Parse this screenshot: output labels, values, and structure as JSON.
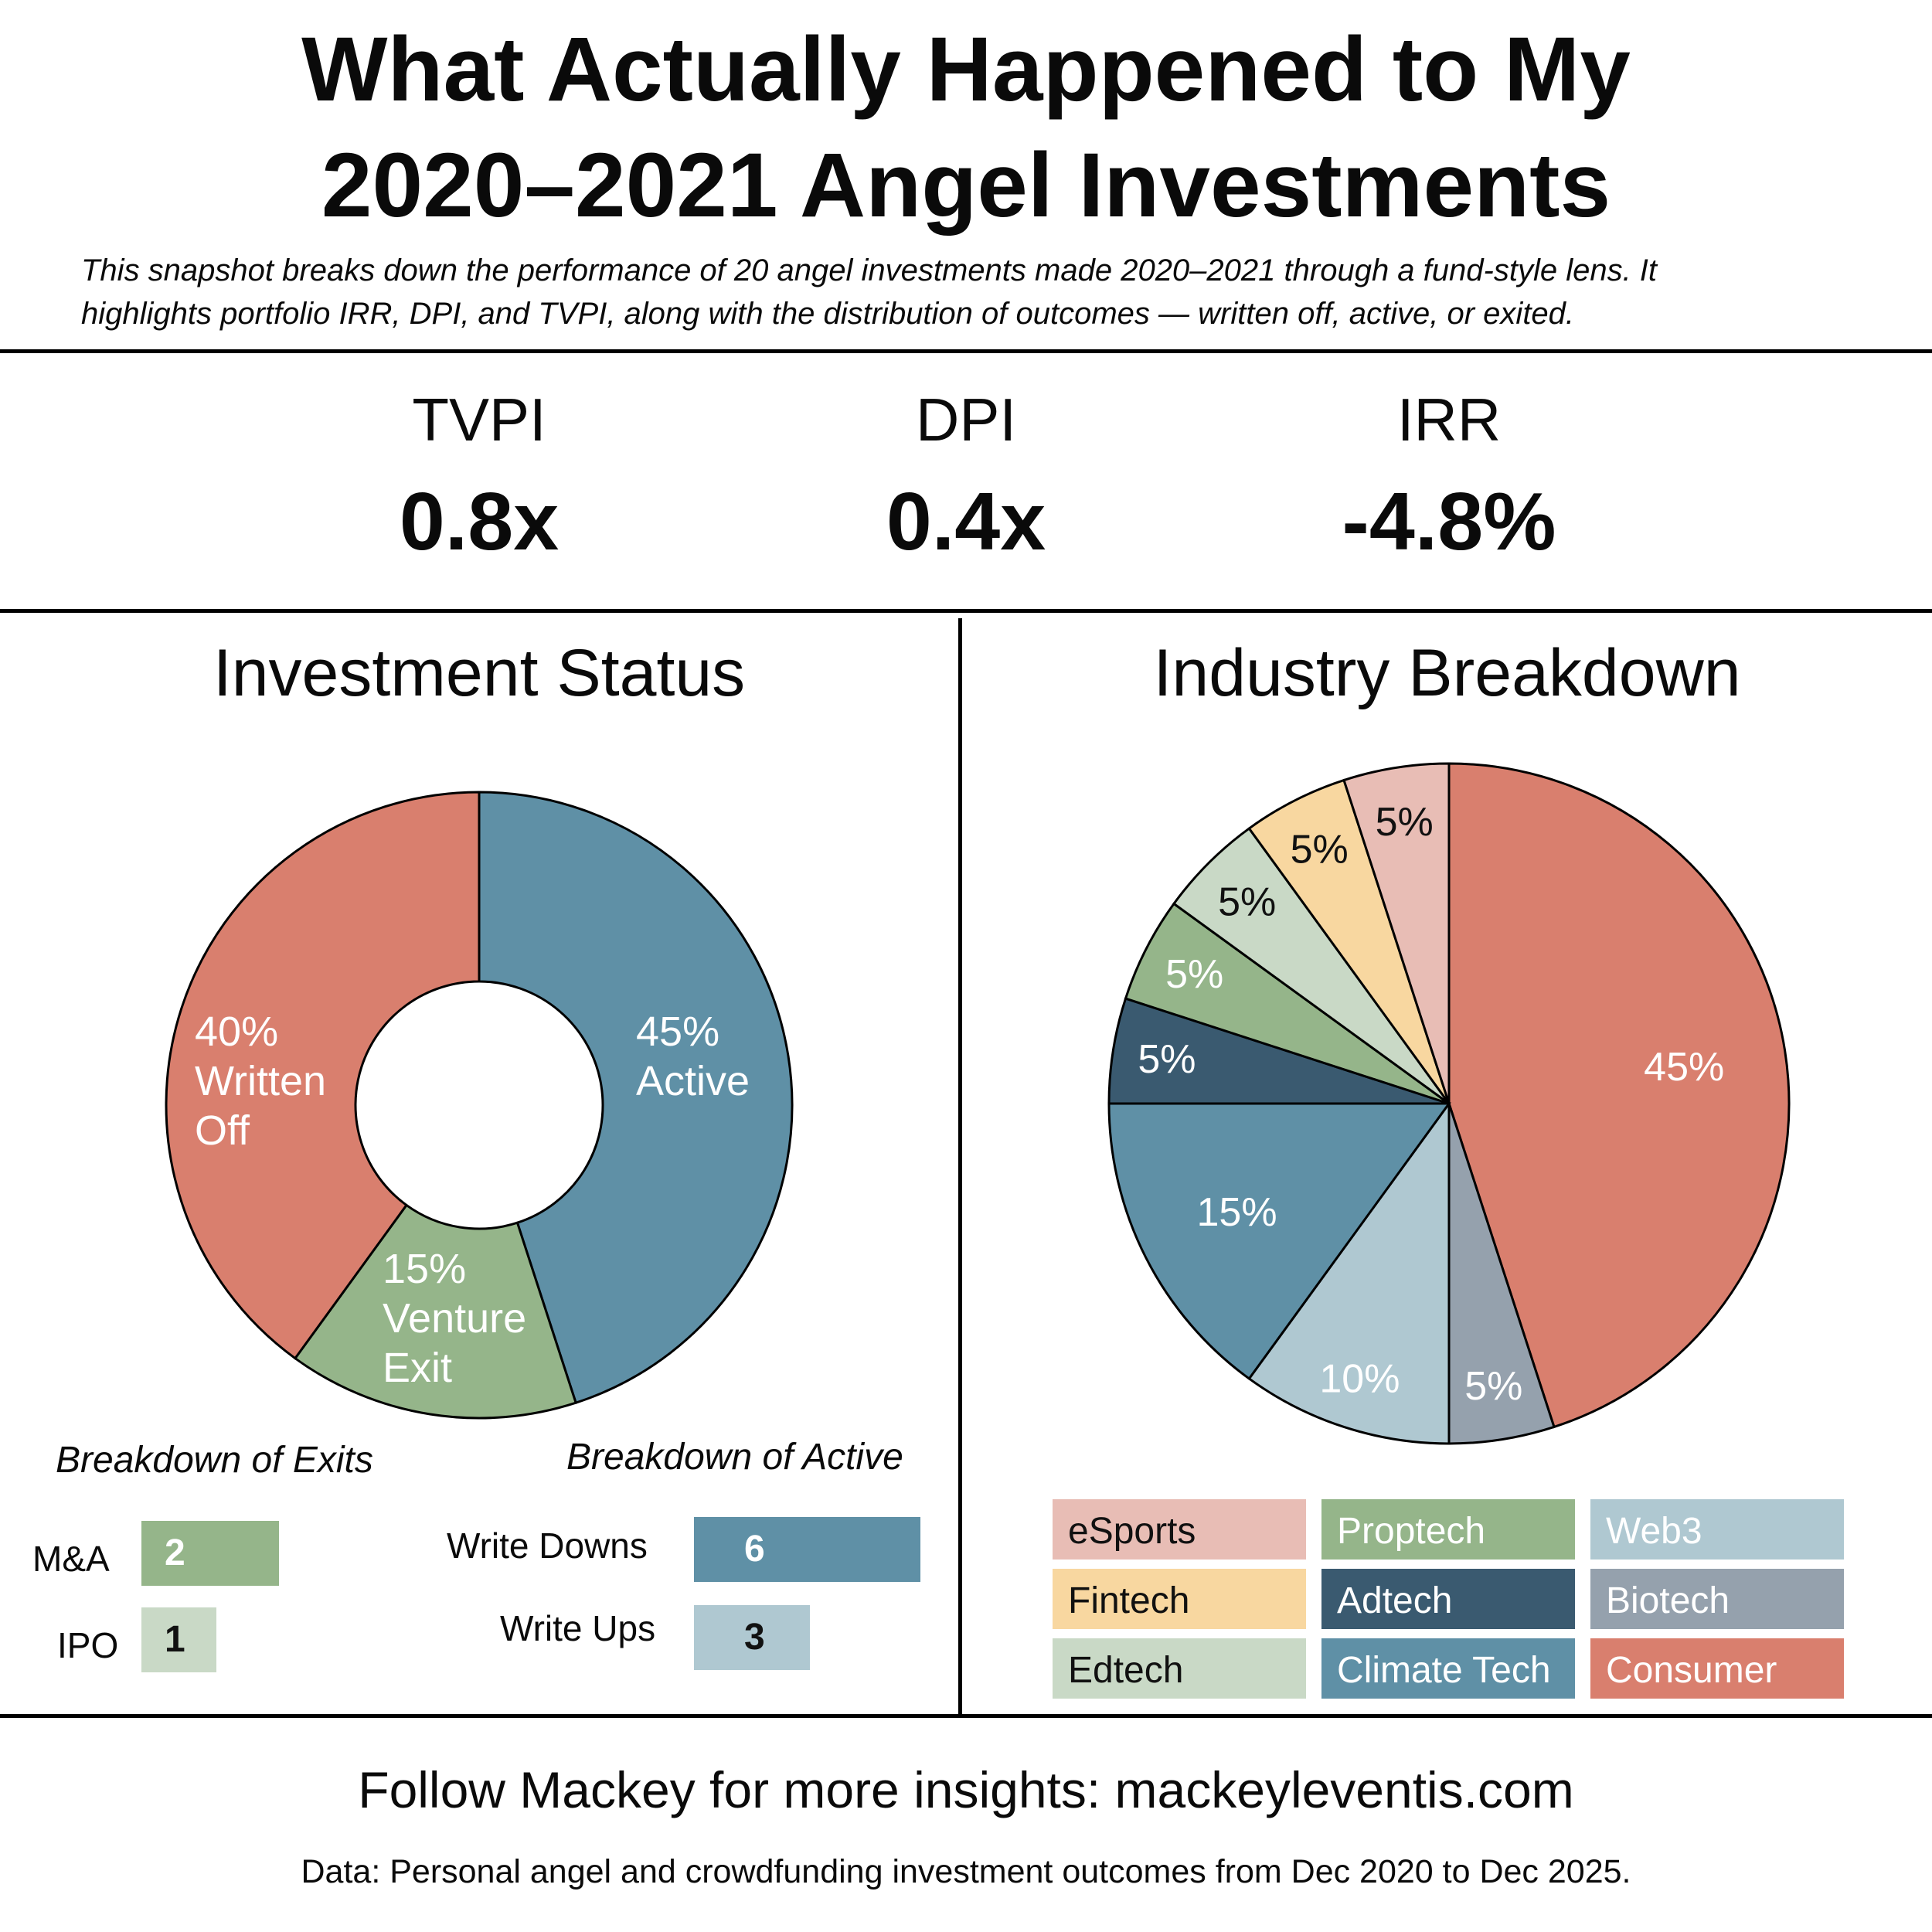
{
  "header": {
    "title_line1": "What Actually Happened to My",
    "title_line2": "2020–2021 Angel Investments",
    "subtitle_line1": "This snapshot breaks down the performance of 20 angel investments made 2020–2021 through a fund-style lens. It",
    "subtitle_line2": "highlights portfolio IRR, DPI, and TVPI, along with the distribution of outcomes — written off, active, or exited."
  },
  "metrics": [
    {
      "label": "TVPI",
      "value": "0.8x"
    },
    {
      "label": "DPI",
      "value": "0.4x"
    },
    {
      "label": "IRR",
      "value": "-4.8%"
    }
  ],
  "status_section": {
    "title": "Investment Status",
    "exits_heading": "Breakdown of Exits",
    "active_heading": "Breakdown of Active",
    "exits": [
      {
        "label": "M&A",
        "value": 2,
        "color": "#95b58a"
      },
      {
        "label": "IPO",
        "value": 1,
        "color": "#c9d9c6"
      }
    ],
    "active": [
      {
        "label": "Write Downs",
        "value": 6,
        "color": "#5f90a6"
      },
      {
        "label": "Write Ups",
        "value": 3,
        "color": "#afc8d1"
      }
    ]
  },
  "industry_section": {
    "title": "Industry Breakdown",
    "legend": [
      {
        "label": "eSports",
        "color": "#e8bdb5",
        "text_color": "#111111"
      },
      {
        "label": "Proptech",
        "color": "#95b58a",
        "text_color": "#ffffff"
      },
      {
        "label": "Web3",
        "color": "#afc8d1",
        "text_color": "#ffffff"
      },
      {
        "label": "Fintech",
        "color": "#f8d7a0",
        "text_color": "#111111"
      },
      {
        "label": "Adtech",
        "color": "#3a5a70",
        "text_color": "#ffffff"
      },
      {
        "label": "Biotech",
        "color": "#95a1ad",
        "text_color": "#ffffff"
      },
      {
        "label": "Edtech",
        "color": "#c9d9c6",
        "text_color": "#111111"
      },
      {
        "label": "Climate Tech",
        "color": "#5f90a6",
        "text_color": "#ffffff"
      },
      {
        "label": "Consumer",
        "color": "#d97f6e",
        "text_color": "#ffffff"
      }
    ]
  },
  "chart_data": [
    {
      "type": "pie",
      "subtype": "donut",
      "title": "Investment Status",
      "slices": [
        {
          "name": "Active",
          "value": 45,
          "label": "45%",
          "label2": "Active",
          "color": "#5f90a6"
        },
        {
          "name": "Venture Exit",
          "value": 15,
          "label": "15%",
          "label2": "Venture",
          "label3": "Exit",
          "color": "#95b58a"
        },
        {
          "name": "Written Off",
          "value": 40,
          "label": "40%",
          "label2": "Written",
          "label3": "Off",
          "color": "#d97f6e"
        }
      ]
    },
    {
      "type": "pie",
      "title": "Industry Breakdown",
      "slices": [
        {
          "name": "Consumer",
          "value": 45,
          "label": "45%",
          "color": "#d97f6e",
          "text_color": "#ffffff"
        },
        {
          "name": "Biotech",
          "value": 5,
          "label": "5%",
          "color": "#95a1ad",
          "text_color": "#ffffff"
        },
        {
          "name": "Web3",
          "value": 10,
          "label": "10%",
          "color": "#afc8d1",
          "text_color": "#ffffff"
        },
        {
          "name": "Climate Tech",
          "value": 15,
          "label": "15%",
          "color": "#5f90a6",
          "text_color": "#ffffff"
        },
        {
          "name": "Adtech",
          "value": 5,
          "label": "5%",
          "color": "#3a5a70",
          "text_color": "#ffffff"
        },
        {
          "name": "Proptech",
          "value": 5,
          "label": "5%",
          "color": "#95b58a",
          "text_color": "#ffffff"
        },
        {
          "name": "Edtech",
          "value": 5,
          "label": "5%",
          "color": "#c9d9c6",
          "text_color": "#111111"
        },
        {
          "name": "Fintech",
          "value": 5,
          "label": "5%",
          "color": "#f8d7a0",
          "text_color": "#111111"
        },
        {
          "name": "eSports",
          "value": 5,
          "label": "5%",
          "color": "#e8bdb5",
          "text_color": "#111111"
        }
      ]
    }
  ],
  "footer": {
    "follow": "Follow Mackey for more insights: mackeyleventis.com",
    "source": "Data: Personal angel and crowdfunding investment outcomes from Dec 2020 to Dec 2025."
  }
}
